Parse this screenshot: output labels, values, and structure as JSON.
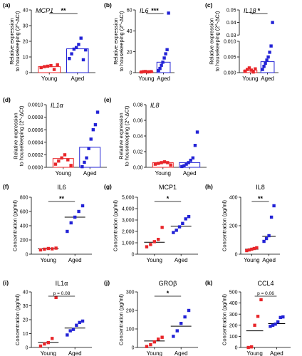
{
  "colors": {
    "young": "#e8262a",
    "aged": "#2323d6",
    "axis": "#000000"
  },
  "chart_data": [
    {
      "id": "a",
      "panel_label": "(a)",
      "type": "bar",
      "title": "MCP1",
      "title_style": "italic",
      "ylabel": [
        "Relative expression",
        "to housekeeping (2^-ΔCt)"
      ],
      "categories": [
        "Young",
        "Aged"
      ],
      "ylim": [
        0,
        40
      ],
      "yticks": [
        "0",
        "10",
        "20",
        "30",
        "40"
      ],
      "yticks_values": [
        0,
        10,
        20,
        30,
        40
      ],
      "summary": [
        3.8,
        15.2
      ],
      "points": [
        [
          3.2,
          3.8,
          4.1,
          4.5,
          2.0,
          5.0
        ],
        [
          9,
          12,
          15,
          16,
          18,
          22,
          8.2,
          14.5
        ]
      ],
      "significance": "**"
    },
    {
      "id": "b",
      "panel_label": "(b)",
      "type": "bar",
      "title": "IL6",
      "title_style": "italic",
      "ylabel": [
        "Relative expression",
        "to housekeeping (2^-ΔCt)"
      ],
      "categories": [
        "Young",
        "Aged"
      ],
      "ylim": [
        0,
        60
      ],
      "yticks": [
        "0",
        "20",
        "40",
        "60"
      ],
      "yticks_values": [
        0,
        20,
        40,
        60
      ],
      "summary": [
        0.8,
        10
      ],
      "points": [
        [
          0.6,
          0.9,
          1.1,
          0.7,
          0.8,
          1.0
        ],
        [
          2,
          4,
          7,
          10,
          14,
          18,
          22,
          57
        ]
      ],
      "significance": "***"
    },
    {
      "id": "c",
      "panel_label": "(c)",
      "type": "bar",
      "title": "IL1β",
      "title_style": "italic",
      "ylabel": [
        "Relative expression",
        "to housekeeping (2^-ΔCt)"
      ],
      "categories": [
        "Young",
        "Aged"
      ],
      "axis_break": true,
      "ylim_lower": [
        0,
        0.01
      ],
      "yticks_lower": [
        "0.000",
        "0.005",
        "0.010"
      ],
      "yticks_lower_values": [
        0,
        0.005,
        0.01
      ],
      "ylim_upper": [
        0.03,
        0.05
      ],
      "yticks_upper": [
        "0.03",
        "0.04",
        "0.05"
      ],
      "yticks_upper_values": [
        0.03,
        0.04,
        0.05
      ],
      "summary": [
        0.0008,
        0.0035
      ],
      "points": [
        [
          0.0005,
          0.001,
          0.0015,
          0.0008,
          0.0002,
          0.0012
        ],
        [
          0.001,
          0.002,
          0.003,
          0.004,
          0.005,
          0.0065,
          0.0085,
          0.04
        ]
      ],
      "significance": "*"
    },
    {
      "id": "d",
      "panel_label": "(d)",
      "type": "bar",
      "title": "IL1α",
      "title_style": "italic",
      "ylabel": [
        "Relative expression",
        "to housekeeping (2^-ΔCt)"
      ],
      "categories": [
        "Young",
        "Aged"
      ],
      "ylim": [
        0,
        0.001
      ],
      "yticks": [
        "0.0000",
        "0.0002",
        "0.0004",
        "0.0006",
        "0.0008",
        "0.0010"
      ],
      "yticks_values": [
        0,
        0.0002,
        0.0004,
        0.0006,
        0.0008,
        0.001
      ],
      "summary": [
        0.00014,
        0.00032
      ],
      "points": [
        [
          5e-05,
          0.0001,
          0.00015,
          0.0002,
          0.00012,
          3e-05
        ],
        [
          1e-05,
          8e-05,
          0.00015,
          0.0003,
          0.00045,
          0.0006,
          0.00068,
          0.00088
        ]
      ],
      "significance": ""
    },
    {
      "id": "e",
      "panel_label": "(e)",
      "type": "bar",
      "title": "IL8",
      "title_style": "italic",
      "ylabel": [
        "Relative expression",
        "to housekeeping (2^-ΔCt)"
      ],
      "categories": [
        "Young",
        "Aged"
      ],
      "ylim": [
        0,
        0.08
      ],
      "yticks": [
        "0.00",
        "0.02",
        "0.04",
        "0.06",
        "0.08"
      ],
      "yticks_values": [
        0,
        0.02,
        0.04,
        0.06,
        0.08
      ],
      "summary": [
        0.006,
        0.006
      ],
      "points": [
        [
          0.004,
          0.005,
          0.006,
          0.007,
          0.006,
          0.003
        ],
        [
          0.001,
          0.002,
          0.004,
          0.006,
          0.009,
          0.012,
          0.028,
          0.045
        ]
      ],
      "significance": ""
    },
    {
      "id": "f",
      "panel_label": "(f)",
      "type": "scatter",
      "title": "IL6",
      "title_style": "normal",
      "ylabel": [
        "Concentration (pg/ml)"
      ],
      "categories": [
        "Young",
        "Aged"
      ],
      "ylim": [
        0,
        800
      ],
      "yticks": [
        "0",
        "200",
        "400",
        "600",
        "800"
      ],
      "yticks_values": [
        0,
        200,
        400,
        600,
        800
      ],
      "summary": [
        75,
        520
      ],
      "points": [
        [
          60,
          70,
          80,
          75,
          85
        ],
        [
          320,
          440,
          520,
          600,
          680
        ]
      ],
      "significance": "**"
    },
    {
      "id": "g",
      "panel_label": "(g)",
      "type": "scatter",
      "title": "MCP1",
      "title_style": "normal",
      "ylabel": [
        "Concentration (pg/ml)"
      ],
      "categories": [
        "Young",
        "Aged"
      ],
      "ylim": [
        0,
        5000
      ],
      "yticks": [
        "0",
        "1,000",
        "2,000",
        "3,000",
        "4,000",
        "5,000"
      ],
      "yticks_values": [
        0,
        1000,
        2000,
        3000,
        4000,
        5000
      ],
      "summary": [
        1050,
        2450
      ],
      "points": [
        [
          650,
          850,
          1100,
          1300,
          2350
        ],
        [
          1900,
          2100,
          2400,
          2700,
          3100,
          3300
        ]
      ],
      "significance": "*"
    },
    {
      "id": "h",
      "panel_label": "(h)",
      "type": "scatter",
      "title": "IL8",
      "title_style": "normal",
      "ylabel": [
        "Concentration (pg/ml)"
      ],
      "categories": [
        "Young",
        "Aged"
      ],
      "ylim": [
        0,
        400
      ],
      "yticks": [
        "0",
        "200",
        "400"
      ],
      "yticks_values": [
        0,
        200,
        400
      ],
      "summary": [
        35,
        125
      ],
      "points": [
        [
          25,
          30,
          35,
          40,
          45
        ],
        [
          90,
          110,
          130,
          260,
          340
        ]
      ],
      "significance": "**"
    },
    {
      "id": "i",
      "panel_label": "(i)",
      "type": "scatter",
      "title": "IL1α",
      "title_style": "normal",
      "ylabel": [
        "Concentration (pg/ml)"
      ],
      "categories": [
        "Young",
        "Aged"
      ],
      "ylim": [
        0,
        40
      ],
      "yticks": [
        "0",
        "10",
        "20",
        "30",
        "40"
      ],
      "yticks_values": [
        0,
        10,
        20,
        30,
        40
      ],
      "summary": [
        3.5,
        14
      ],
      "points": [
        [
          1,
          2.5,
          3.5,
          6.5,
          36
        ],
        [
          9,
          12,
          13,
          16,
          18,
          19
        ]
      ],
      "significance": "p = 0.08"
    },
    {
      "id": "j",
      "panel_label": "(j)",
      "type": "scatter",
      "title": "GROβ",
      "title_style": "normal",
      "ylabel": [
        "Concentration (pg/ml)"
      ],
      "categories": [
        "Young",
        "Aged"
      ],
      "ylim": [
        0,
        300
      ],
      "yticks": [
        "0",
        "100",
        "200",
        "300"
      ],
      "yticks_values": [
        0,
        100,
        200,
        300
      ],
      "summary": [
        35,
        115
      ],
      "points": [
        [
          5,
          15,
          30,
          45,
          55
        ],
        [
          60,
          90,
          130,
          165,
          200
        ]
      ],
      "significance": "*"
    },
    {
      "id": "k",
      "panel_label": "(k)",
      "type": "scatter",
      "title": "CCL4",
      "title_style": "normal",
      "ylabel": [
        "Concentration (pg/ml)"
      ],
      "categories": [
        "Young",
        "Aged"
      ],
      "ylim": [
        0,
        500
      ],
      "yticks": [
        "0",
        "100",
        "200",
        "300",
        "400",
        "500"
      ],
      "yticks_values": [
        0,
        100,
        200,
        300,
        400,
        500
      ],
      "summary": [
        150,
        215
      ],
      "points": [
        [
          0,
          5,
          200,
          280,
          430
        ],
        [
          190,
          200,
          210,
          230,
          270,
          275
        ]
      ],
      "significance": "p = 0.06"
    }
  ]
}
